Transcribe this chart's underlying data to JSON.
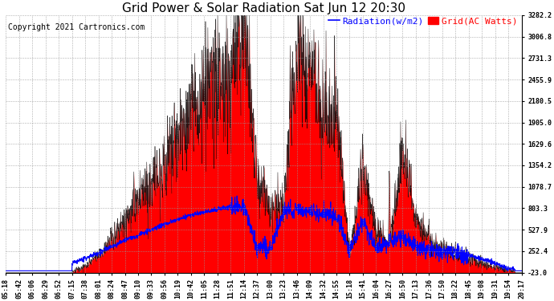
{
  "title": "Grid Power & Solar Radiation Sat Jun 12 20:30",
  "copyright": "Copyright 2021 Cartronics.com",
  "legend_radiation": "Radiation(w/m2)",
  "legend_grid": "Grid(AC Watts)",
  "ylabel_right_ticks": [
    3282.2,
    3006.8,
    2731.3,
    2455.9,
    2180.5,
    1905.0,
    1629.6,
    1354.2,
    1078.7,
    803.3,
    527.9,
    252.4,
    -23.0
  ],
  "ylim": [
    -23.0,
    3282.2
  ],
  "background_color": "#ffffff",
  "grid_color": "#999999",
  "radiation_color": "#0000ff",
  "grid_ac_color": "#ff0000",
  "outline_color": "#000000",
  "title_fontsize": 11,
  "copyright_fontsize": 7,
  "legend_fontsize": 8,
  "tick_fontsize": 6,
  "time_labels": [
    "05:18",
    "05:42",
    "06:06",
    "06:29",
    "06:52",
    "07:15",
    "07:38",
    "08:01",
    "08:24",
    "08:47",
    "09:10",
    "09:33",
    "09:56",
    "10:19",
    "10:42",
    "11:05",
    "11:28",
    "11:51",
    "12:14",
    "12:37",
    "13:00",
    "13:23",
    "13:46",
    "14:09",
    "14:32",
    "14:55",
    "15:18",
    "15:41",
    "16:04",
    "16:27",
    "16:50",
    "17:13",
    "17:36",
    "17:50",
    "18:22",
    "18:45",
    "19:08",
    "19:31",
    "19:54",
    "20:17"
  ],
  "grid_ac_values": [
    -23,
    -23,
    -23,
    -23,
    -23,
    -10,
    50,
    200,
    400,
    650,
    900,
    1150,
    1400,
    1700,
    2000,
    2300,
    2380,
    2420,
    3282,
    1200,
    850,
    800,
    2900,
    2700,
    2100,
    2050,
    200,
    1400,
    500,
    350,
    1500,
    700,
    400,
    300,
    200,
    150,
    100,
    50,
    10,
    -23
  ],
  "radiation_values": [
    0,
    0,
    5,
    20,
    55,
    100,
    160,
    230,
    310,
    390,
    460,
    530,
    600,
    660,
    710,
    750,
    790,
    820,
    840,
    300,
    280,
    750,
    780,
    760,
    730,
    700,
    250,
    650,
    280,
    380,
    450,
    300,
    270,
    250,
    230,
    200,
    150,
    100,
    30,
    0
  ]
}
